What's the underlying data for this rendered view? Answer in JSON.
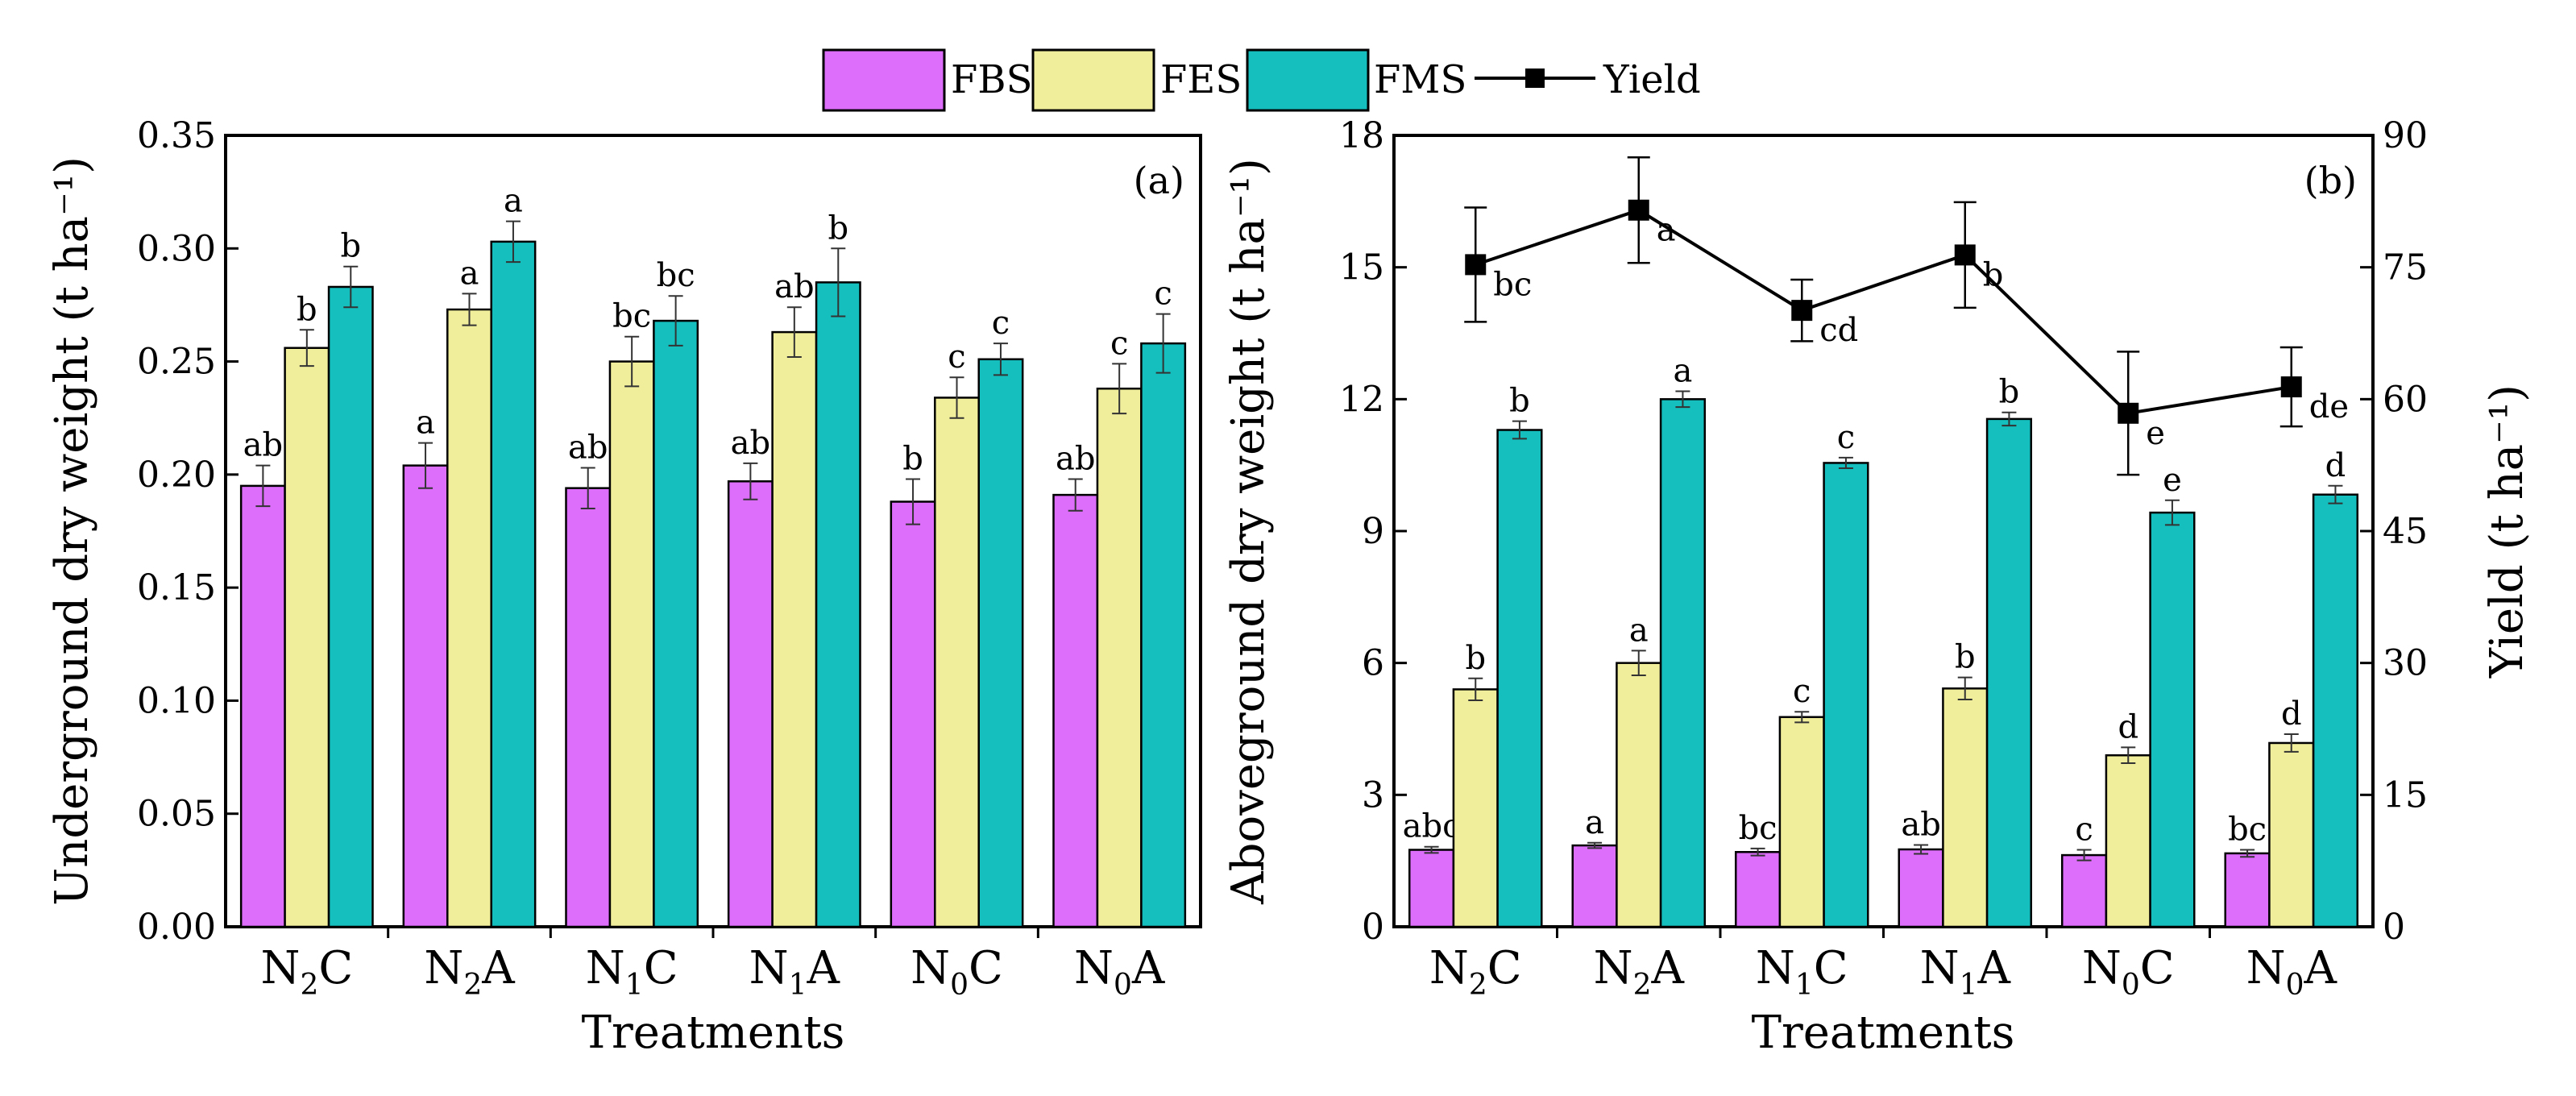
{
  "legend": {
    "fbs": "FBS",
    "fes": "FES",
    "fms": "FMS",
    "yield": "Yield"
  },
  "colors": {
    "FBS": "#dd6dfb",
    "FES": "#f0ee9b",
    "FMS": "#14bfbe",
    "Yield": "#000000"
  },
  "chart_data": [
    {
      "type": "bar",
      "panel": "(a)",
      "categories": [
        {
          "n": "N",
          "sub": "2",
          "s": "C"
        },
        {
          "n": "N",
          "sub": "2",
          "s": "A"
        },
        {
          "n": "N",
          "sub": "1",
          "s": "C"
        },
        {
          "n": "N",
          "sub": "1",
          "s": "A"
        },
        {
          "n": "N",
          "sub": "0",
          "s": "C"
        },
        {
          "n": "N",
          "sub": "0",
          "s": "A"
        }
      ],
      "category_labels": [
        "N2C",
        "N2A",
        "N1C",
        "N1A",
        "N0C",
        "N0A"
      ],
      "xlabel": "Treatments",
      "ylabel": "Underground dry weight (t ha⁻¹)",
      "ylim": [
        0,
        0.35
      ],
      "yticks": [
        "0.00",
        "0.05",
        "0.10",
        "0.15",
        "0.20",
        "0.25",
        "0.30",
        "0.35"
      ],
      "series": [
        {
          "name": "FBS",
          "values": [
            0.195,
            0.204,
            0.194,
            0.197,
            0.188,
            0.191
          ],
          "errors": [
            0.009,
            0.01,
            0.009,
            0.008,
            0.01,
            0.007
          ],
          "letters": [
            "ab",
            "a",
            "ab",
            "ab",
            "b",
            "ab"
          ]
        },
        {
          "name": "FES",
          "values": [
            0.256,
            0.273,
            0.25,
            0.263,
            0.234,
            0.238
          ],
          "errors": [
            0.008,
            0.007,
            0.011,
            0.011,
            0.009,
            0.011
          ],
          "letters": [
            "b",
            "a",
            "bc",
            "ab",
            "c",
            "c"
          ]
        },
        {
          "name": "FMS",
          "values": [
            0.283,
            0.303,
            0.268,
            0.285,
            0.251,
            0.258
          ],
          "errors": [
            0.009,
            0.009,
            0.011,
            0.015,
            0.007,
            0.013
          ],
          "letters": [
            "b",
            "a",
            "bc",
            "b",
            "c",
            "c"
          ]
        }
      ]
    },
    {
      "type": "bar+line",
      "panel": "(b)",
      "categories": [
        {
          "n": "N",
          "sub": "2",
          "s": "C"
        },
        {
          "n": "N",
          "sub": "2",
          "s": "A"
        },
        {
          "n": "N",
          "sub": "1",
          "s": "C"
        },
        {
          "n": "N",
          "sub": "1",
          "s": "A"
        },
        {
          "n": "N",
          "sub": "0",
          "s": "C"
        },
        {
          "n": "N",
          "sub": "0",
          "s": "A"
        }
      ],
      "category_labels": [
        "N2C",
        "N2A",
        "N1C",
        "N1A",
        "N0C",
        "N0A"
      ],
      "xlabel": "Treatments",
      "ylabel": "Aboveground dry weight (t ha⁻¹)",
      "ylim": [
        0,
        18
      ],
      "yticks": [
        "0",
        "3",
        "6",
        "9",
        "12",
        "15",
        "18"
      ],
      "y2label": "Yield (t ha⁻¹)",
      "y2lim": [
        0,
        90
      ],
      "y2ticks": [
        "0",
        "15",
        "30",
        "45",
        "60",
        "75",
        "90"
      ],
      "series": [
        {
          "name": "FBS",
          "values": [
            1.75,
            1.85,
            1.7,
            1.76,
            1.63,
            1.67
          ],
          "errors": [
            0.07,
            0.06,
            0.08,
            0.1,
            0.12,
            0.08
          ],
          "letters": [
            "abc",
            "a",
            "bc",
            "ab",
            "c",
            "bc"
          ]
        },
        {
          "name": "FES",
          "values": [
            5.4,
            6.0,
            4.77,
            5.42,
            3.9,
            4.18
          ],
          "errors": [
            0.25,
            0.28,
            0.12,
            0.25,
            0.18,
            0.2
          ],
          "letters": [
            "b",
            "a",
            "c",
            "b",
            "d",
            "d"
          ]
        },
        {
          "name": "FMS",
          "values": [
            11.3,
            12.0,
            10.55,
            11.55,
            9.42,
            9.83
          ],
          "errors": [
            0.2,
            0.18,
            0.12,
            0.15,
            0.28,
            0.2
          ],
          "letters": [
            "b",
            "a",
            "c",
            "b",
            "e",
            "d"
          ]
        }
      ],
      "line": {
        "name": "Yield",
        "axis": "right",
        "values": [
          75.3,
          81.5,
          70.1,
          76.4,
          58.4,
          61.4
        ],
        "errors": [
          6.5,
          6.0,
          3.5,
          6.0,
          7.0,
          4.5
        ],
        "letters": [
          "bc",
          "a",
          "cd",
          "b",
          "e",
          "de"
        ]
      }
    }
  ]
}
